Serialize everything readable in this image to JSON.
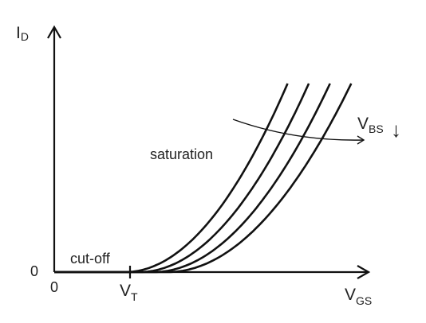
{
  "chart_data": {
    "type": "line",
    "title": "",
    "y_axis_label": {
      "main": "I",
      "sub": "D"
    },
    "x_axis_label": {
      "main": "V",
      "sub": "GS"
    },
    "x_ticks": [
      {
        "value": 0,
        "label": "0"
      },
      {
        "value": 1,
        "label": {
          "main": "V",
          "sub": "T"
        }
      }
    ],
    "y_ticks": [
      {
        "value": 0,
        "label": "0"
      }
    ],
    "annotations": {
      "cutoff": "cut-off",
      "saturation": "saturation",
      "vbs": {
        "main": "V",
        "sub": "BS",
        "arrow": "↓"
      }
    },
    "series": [
      {
        "x": [
          0,
          1.0,
          3.3
        ],
        "y": [
          0,
          0,
          1
        ]
      },
      {
        "x": [
          0,
          1.2,
          3.6
        ],
        "y": [
          0,
          0,
          1
        ]
      },
      {
        "x": [
          0,
          1.4,
          3.9
        ],
        "y": [
          0,
          0,
          1
        ]
      },
      {
        "x": [
          0,
          1.6,
          4.2
        ],
        "y": [
          0,
          0,
          1
        ]
      }
    ],
    "curve_shape": "square-law",
    "xlim": [
      0,
      4.4
    ],
    "ylim": [
      0,
      1
    ],
    "colors": {
      "curve": "#111111",
      "axis": "#111111",
      "text": "#222222"
    }
  }
}
